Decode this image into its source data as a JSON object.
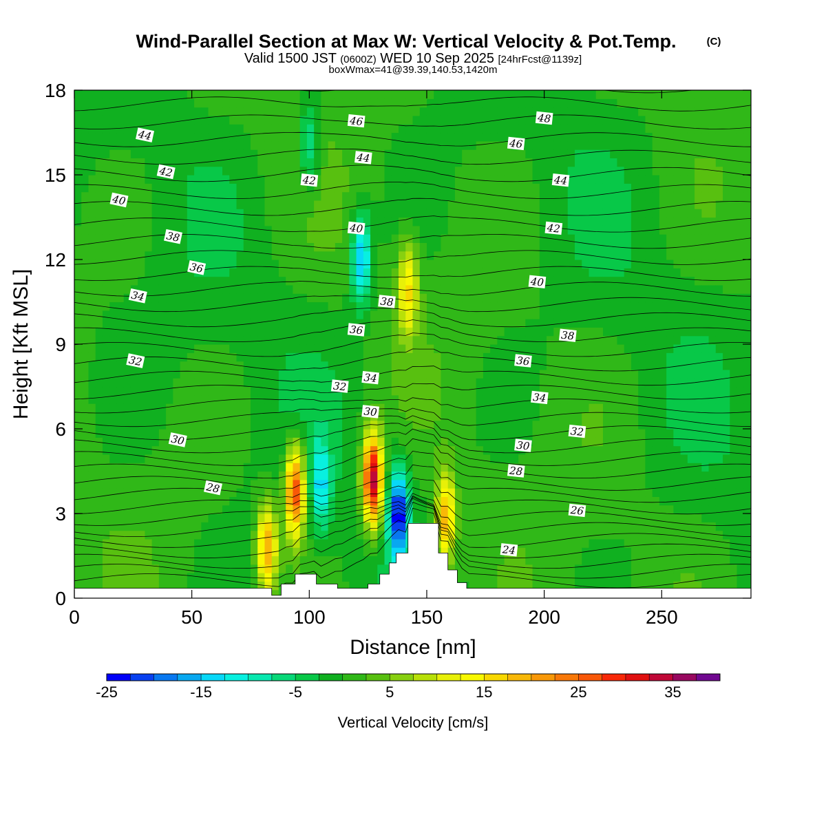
{
  "title": {
    "main": "Wind-Parallel Section at Max W: Vertical Velocity & Pot.Temp.",
    "copyright": "(C)",
    "valid_prefix": "Valid 1500 JST",
    "valid_z": "(0600Z)",
    "valid_date": "WED 10 Sep 2025",
    "valid_fcst": "[24hrFcst@1139z]",
    "box": "boxWmax=41@39.39,140.53,1420m"
  },
  "chart_data": {
    "type": "heatmap",
    "xlabel": "Distance [nm]",
    "ylabel": "Height [Kft MSL]",
    "xlim": [
      0,
      288
    ],
    "ylim": [
      0,
      18
    ],
    "x_ticks": [
      0,
      50,
      100,
      150,
      200,
      250
    ],
    "y_ticks": [
      0,
      3,
      6,
      9,
      12,
      15,
      18
    ],
    "colorbar": {
      "label": "Vertical Velocity [cm/s]",
      "min": -25,
      "max": 41,
      "step": 2.5,
      "tick_values": [
        -25,
        -15,
        -5,
        5,
        15,
        25,
        35
      ],
      "tick_labels": [
        "-25",
        "-15",
        "-5",
        "5",
        "15",
        "25",
        "35"
      ],
      "colors": [
        "#0000f8",
        "#0840f0",
        "#0878f0",
        "#08a8f0",
        "#08d8f8",
        "#08f0e0",
        "#08e8b0",
        "#08d878",
        "#08c848",
        "#10b020",
        "#30b818",
        "#58c010",
        "#88d010",
        "#b8e008",
        "#e8f008",
        "#f8f800",
        "#f8d800",
        "#f8b808",
        "#f89808",
        "#f87808",
        "#f85808",
        "#f82808",
        "#e01010",
        "#c00838",
        "#980860",
        "#700890"
      ]
    },
    "velocity_features": [
      {
        "x": 127,
        "y": 4.2,
        "w": 36
      },
      {
        "x": 94,
        "y": 3.8,
        "w": 28
      },
      {
        "x": 82,
        "y": 1.8,
        "w": 20
      },
      {
        "x": 142,
        "y": 11.0,
        "w": 15
      },
      {
        "x": 158,
        "y": 2.8,
        "w": 20
      },
      {
        "x": 138,
        "y": 3.0,
        "w": -24
      },
      {
        "x": 105,
        "y": 4.0,
        "w": -12
      },
      {
        "x": 122,
        "y": 12.0,
        "w": -16
      },
      {
        "x": 100,
        "y": 16.0,
        "w": -9
      }
    ],
    "terrain": {
      "x": [
        0,
        84,
        84,
        88,
        88,
        94,
        94,
        103,
        103,
        112,
        112,
        117,
        117,
        125,
        125,
        130,
        130,
        134,
        134,
        137,
        137,
        142,
        142,
        155,
        155,
        159,
        159,
        163,
        163,
        167,
        167,
        288
      ],
      "y": [
        0.35,
        0.35,
        0.1,
        0.1,
        0.5,
        0.5,
        0.85,
        0.85,
        0.5,
        0.5,
        0.35,
        0.35,
        0.35,
        0.35,
        0.5,
        0.5,
        0.85,
        0.85,
        1.25,
        1.25,
        1.6,
        1.6,
        2.65,
        2.65,
        1.6,
        1.6,
        1.0,
        1.0,
        0.55,
        0.55,
        0.35,
        0.35
      ]
    },
    "theta_contour_labels": [
      {
        "v": "44",
        "x": 30,
        "y": 16.4
      },
      {
        "v": "42",
        "x": 39,
        "y": 15.1
      },
      {
        "v": "40",
        "x": 19,
        "y": 14.1
      },
      {
        "v": "38",
        "x": 42,
        "y": 12.8
      },
      {
        "v": "36",
        "x": 52,
        "y": 11.7
      },
      {
        "v": "34",
        "x": 27,
        "y": 10.7
      },
      {
        "v": "32",
        "x": 26,
        "y": 8.4
      },
      {
        "v": "30",
        "x": 44,
        "y": 5.6
      },
      {
        "v": "28",
        "x": 59,
        "y": 3.9
      },
      {
        "v": "46",
        "x": 120,
        "y": 16.9
      },
      {
        "v": "44",
        "x": 123,
        "y": 15.6
      },
      {
        "v": "42",
        "x": 100,
        "y": 14.8
      },
      {
        "v": "40",
        "x": 120,
        "y": 13.1
      },
      {
        "v": "38",
        "x": 133,
        "y": 10.5
      },
      {
        "v": "36",
        "x": 120,
        "y": 9.5
      },
      {
        "v": "34",
        "x": 126,
        "y": 7.8
      },
      {
        "v": "32",
        "x": 113,
        "y": 7.5
      },
      {
        "v": "30",
        "x": 126,
        "y": 6.6
      },
      {
        "v": "48",
        "x": 200,
        "y": 17.0
      },
      {
        "v": "46",
        "x": 188,
        "y": 16.1
      },
      {
        "v": "44",
        "x": 207,
        "y": 14.8
      },
      {
        "v": "42",
        "x": 204,
        "y": 13.1
      },
      {
        "v": "40",
        "x": 197,
        "y": 11.2
      },
      {
        "v": "38",
        "x": 210,
        "y": 9.3
      },
      {
        "v": "36",
        "x": 191,
        "y": 8.4
      },
      {
        "v": "34",
        "x": 198,
        "y": 7.1
      },
      {
        "v": "32",
        "x": 214,
        "y": 5.9
      },
      {
        "v": "30",
        "x": 191,
        "y": 5.4
      },
      {
        "v": "28",
        "x": 188,
        "y": 4.5
      },
      {
        "v": "26",
        "x": 214,
        "y": 3.1
      },
      {
        "v": "24",
        "x": 185,
        "y": 1.7
      }
    ]
  }
}
